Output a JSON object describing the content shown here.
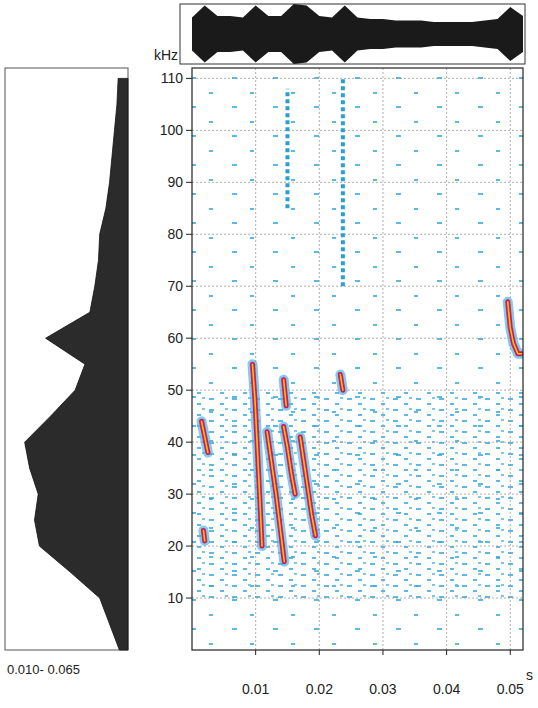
{
  "chart_data": {
    "type": "spectrogram",
    "x_label": "s",
    "y_label": "kHz",
    "xlim": [
      0,
      0.052
    ],
    "ylim": [
      0,
      112
    ],
    "xticks": [
      0.01,
      0.02,
      0.03,
      0.04,
      0.05
    ],
    "yticks": [
      10,
      20,
      30,
      40,
      50,
      60,
      70,
      80,
      90,
      100,
      110
    ],
    "grid": true,
    "calls": [
      {
        "x": [
          0.0015,
          0.002,
          0.0025
        ],
        "y": [
          44,
          41,
          38
        ]
      },
      {
        "x": [
          0.0018,
          0.002
        ],
        "y": [
          23,
          21
        ]
      },
      {
        "x": [
          0.0095,
          0.0099,
          0.0103,
          0.0107,
          0.011
        ],
        "y": [
          55,
          48,
          38,
          28,
          20
        ]
      },
      {
        "x": [
          0.0118,
          0.0125,
          0.0132,
          0.0139,
          0.0145
        ],
        "y": [
          42,
          36,
          30,
          23,
          17
        ]
      },
      {
        "x": [
          0.0144,
          0.015,
          0.0156,
          0.0162
        ],
        "y": [
          43,
          39,
          34,
          30
        ]
      },
      {
        "x": [
          0.0144,
          0.0148
        ],
        "y": [
          52,
          47
        ]
      },
      {
        "x": [
          0.017,
          0.0176,
          0.0182,
          0.0188,
          0.0194
        ],
        "y": [
          41,
          36,
          31,
          26,
          22
        ]
      },
      {
        "x": [
          0.0233,
          0.0237
        ],
        "y": [
          53,
          50
        ]
      },
      {
        "x": [
          0.0496,
          0.05,
          0.0505,
          0.0512,
          0.0518
        ],
        "y": [
          67,
          62,
          59,
          57,
          57
        ]
      }
    ],
    "clicks": [
      {
        "x": 0.015,
        "ymin": 85,
        "ymax": 108
      },
      {
        "x": 0.0237,
        "ymin": 70,
        "ymax": 110
      }
    ],
    "spectrum": {
      "label": "0.010- 0.065",
      "level_lim": [
        0,
        100
      ],
      "freq": [
        0,
        5,
        10,
        15,
        20,
        25,
        30,
        35,
        40,
        45,
        50,
        55,
        60,
        65,
        70,
        75,
        80,
        85,
        90,
        95,
        100,
        105,
        110
      ],
      "level": [
        7,
        15,
        23,
        47,
        72,
        76,
        73,
        80,
        84,
        63,
        43,
        35,
        67,
        31,
        27,
        24,
        23,
        18,
        15,
        13,
        11,
        9,
        8
      ]
    },
    "waveform": {
      "t": [
        0,
        0.002,
        0.004,
        0.006,
        0.008,
        0.01,
        0.012,
        0.014,
        0.016,
        0.018,
        0.02,
        0.022,
        0.024,
        0.026,
        0.028,
        0.03,
        0.032,
        0.034,
        0.036,
        0.038,
        0.04,
        0.042,
        0.044,
        0.046,
        0.048,
        0.05,
        0.052
      ],
      "amp": [
        0.55,
        0.95,
        0.6,
        0.6,
        0.55,
        0.95,
        0.6,
        0.6,
        1.0,
        0.95,
        0.6,
        0.55,
        0.95,
        0.55,
        0.5,
        0.5,
        0.45,
        0.45,
        0.45,
        0.4,
        0.4,
        0.4,
        0.4,
        0.45,
        0.5,
        0.9,
        0.6
      ]
    }
  }
}
